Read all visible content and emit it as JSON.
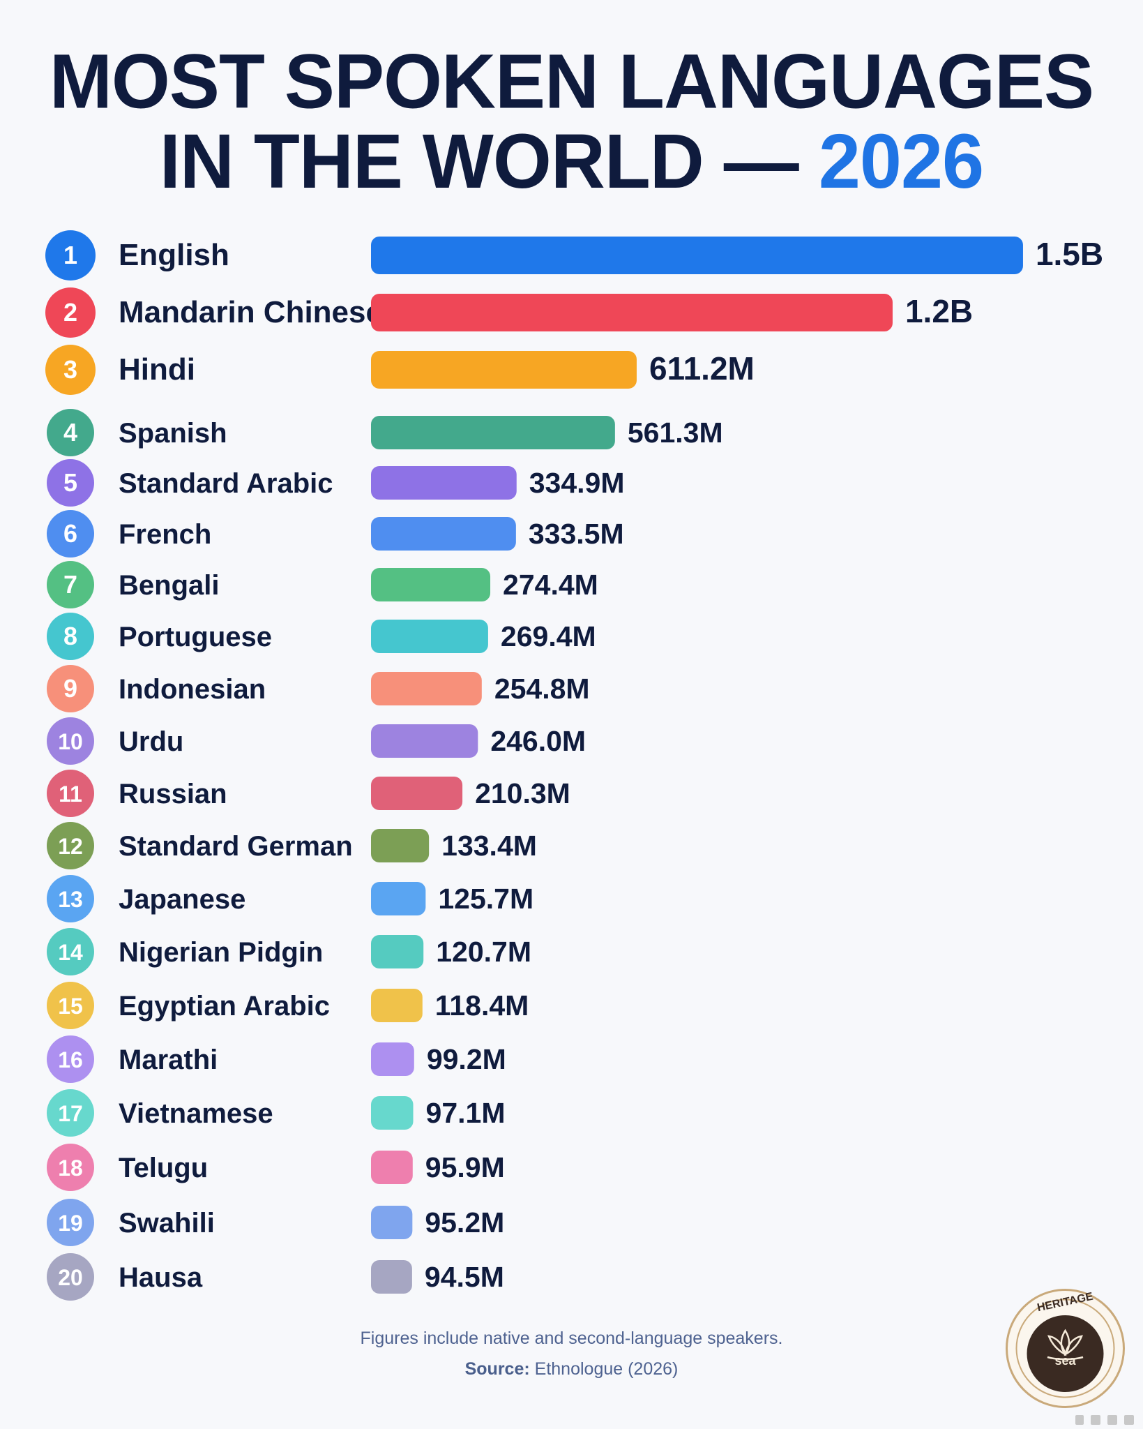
{
  "title": {
    "line1": "MOST SPOKEN LANGUAGES",
    "line2_prefix": "IN THE WORLD — ",
    "line2_highlight": "2026"
  },
  "chart_data": {
    "type": "bar",
    "orientation": "horizontal",
    "title": "MOST SPOKEN LANGUAGES IN THE WORLD — 2026",
    "unit": "speakers (millions)",
    "categories": [
      "English",
      "Mandarin Chinese",
      "Hindi",
      "Spanish",
      "Standard Arabic",
      "French",
      "Bengali",
      "Portuguese",
      "Indonesian",
      "Urdu",
      "Russian",
      "Standard German",
      "Japanese",
      "Nigerian Pidgin",
      "Egyptian Arabic",
      "Marathi",
      "Vietnamese",
      "Telugu",
      "Swahili",
      "Hausa"
    ],
    "ranks": [
      "1",
      "2",
      "3",
      "4",
      "5",
      "6",
      "7",
      "8",
      "9",
      "10",
      "11",
      "12",
      "13",
      "14",
      "15",
      "16",
      "17",
      "18",
      "19",
      "20"
    ],
    "values": [
      1500,
      1200,
      611.2,
      561.3,
      334.9,
      333.5,
      274.4,
      269.4,
      254.8,
      246.0,
      210.3,
      133.4,
      125.7,
      120.7,
      118.4,
      99.2,
      97.1,
      95.9,
      95.2,
      94.5
    ],
    "value_labels": [
      "1.5B",
      "1.2B",
      "611.2M",
      "561.3M",
      "334.9M",
      "333.5M",
      "274.4M",
      "269.4M",
      "254.8M",
      "246.0M",
      "210.3M",
      "133.4M",
      "125.7M",
      "120.7M",
      "118.4M",
      "99.2M",
      "97.1M",
      "95.9M",
      "95.2M",
      "94.5M"
    ],
    "colors": [
      "#1f78ea",
      "#ef4757",
      "#f7a623",
      "#43a98c",
      "#8e72e6",
      "#4f8ef0",
      "#54c083",
      "#45c6cf",
      "#f7907a",
      "#9d83e0",
      "#e06178",
      "#7c9f55",
      "#5aa5f2",
      "#55cbc0",
      "#f0c24a",
      "#ad90f0",
      "#67d8cd",
      "#ee7fae",
      "#7fa5ee",
      "#a6a6c2"
    ],
    "grid": false,
    "legend": "none"
  },
  "footer": {
    "note": "Figures include native and second-language speakers.",
    "source_label": "Source:",
    "source_value": " Ethnologue (2026)"
  },
  "logo": {
    "top_text": "HERITAGE",
    "bottom_text": "sea",
    "colors": {
      "ring": "#c9a97a",
      "inner": "#3a2a22"
    }
  }
}
